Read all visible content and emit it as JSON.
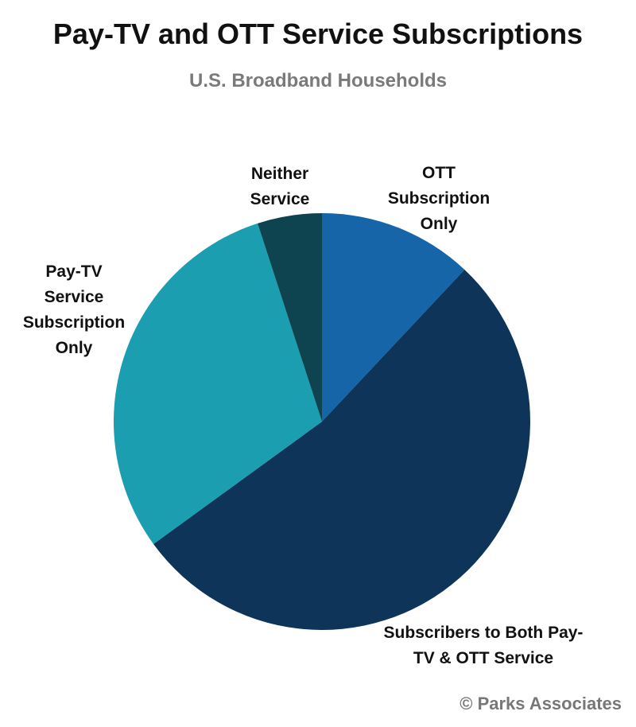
{
  "chart_data": {
    "type": "pie",
    "title": "Pay-TV and OTT Service Subscriptions",
    "subtitle": "U.S. Broadband Households",
    "categories": [
      "OTT Subscription Only",
      "Subscribers to Both Pay-TV & OTT Service",
      "Pay-TV Service Subscription Only",
      "Neither Service"
    ],
    "values": [
      12,
      53,
      30,
      5
    ],
    "colors": [
      "#1565a8",
      "#0e3459",
      "#1a9eb0",
      "#0e4450"
    ],
    "source": "© Parks Associates"
  }
}
